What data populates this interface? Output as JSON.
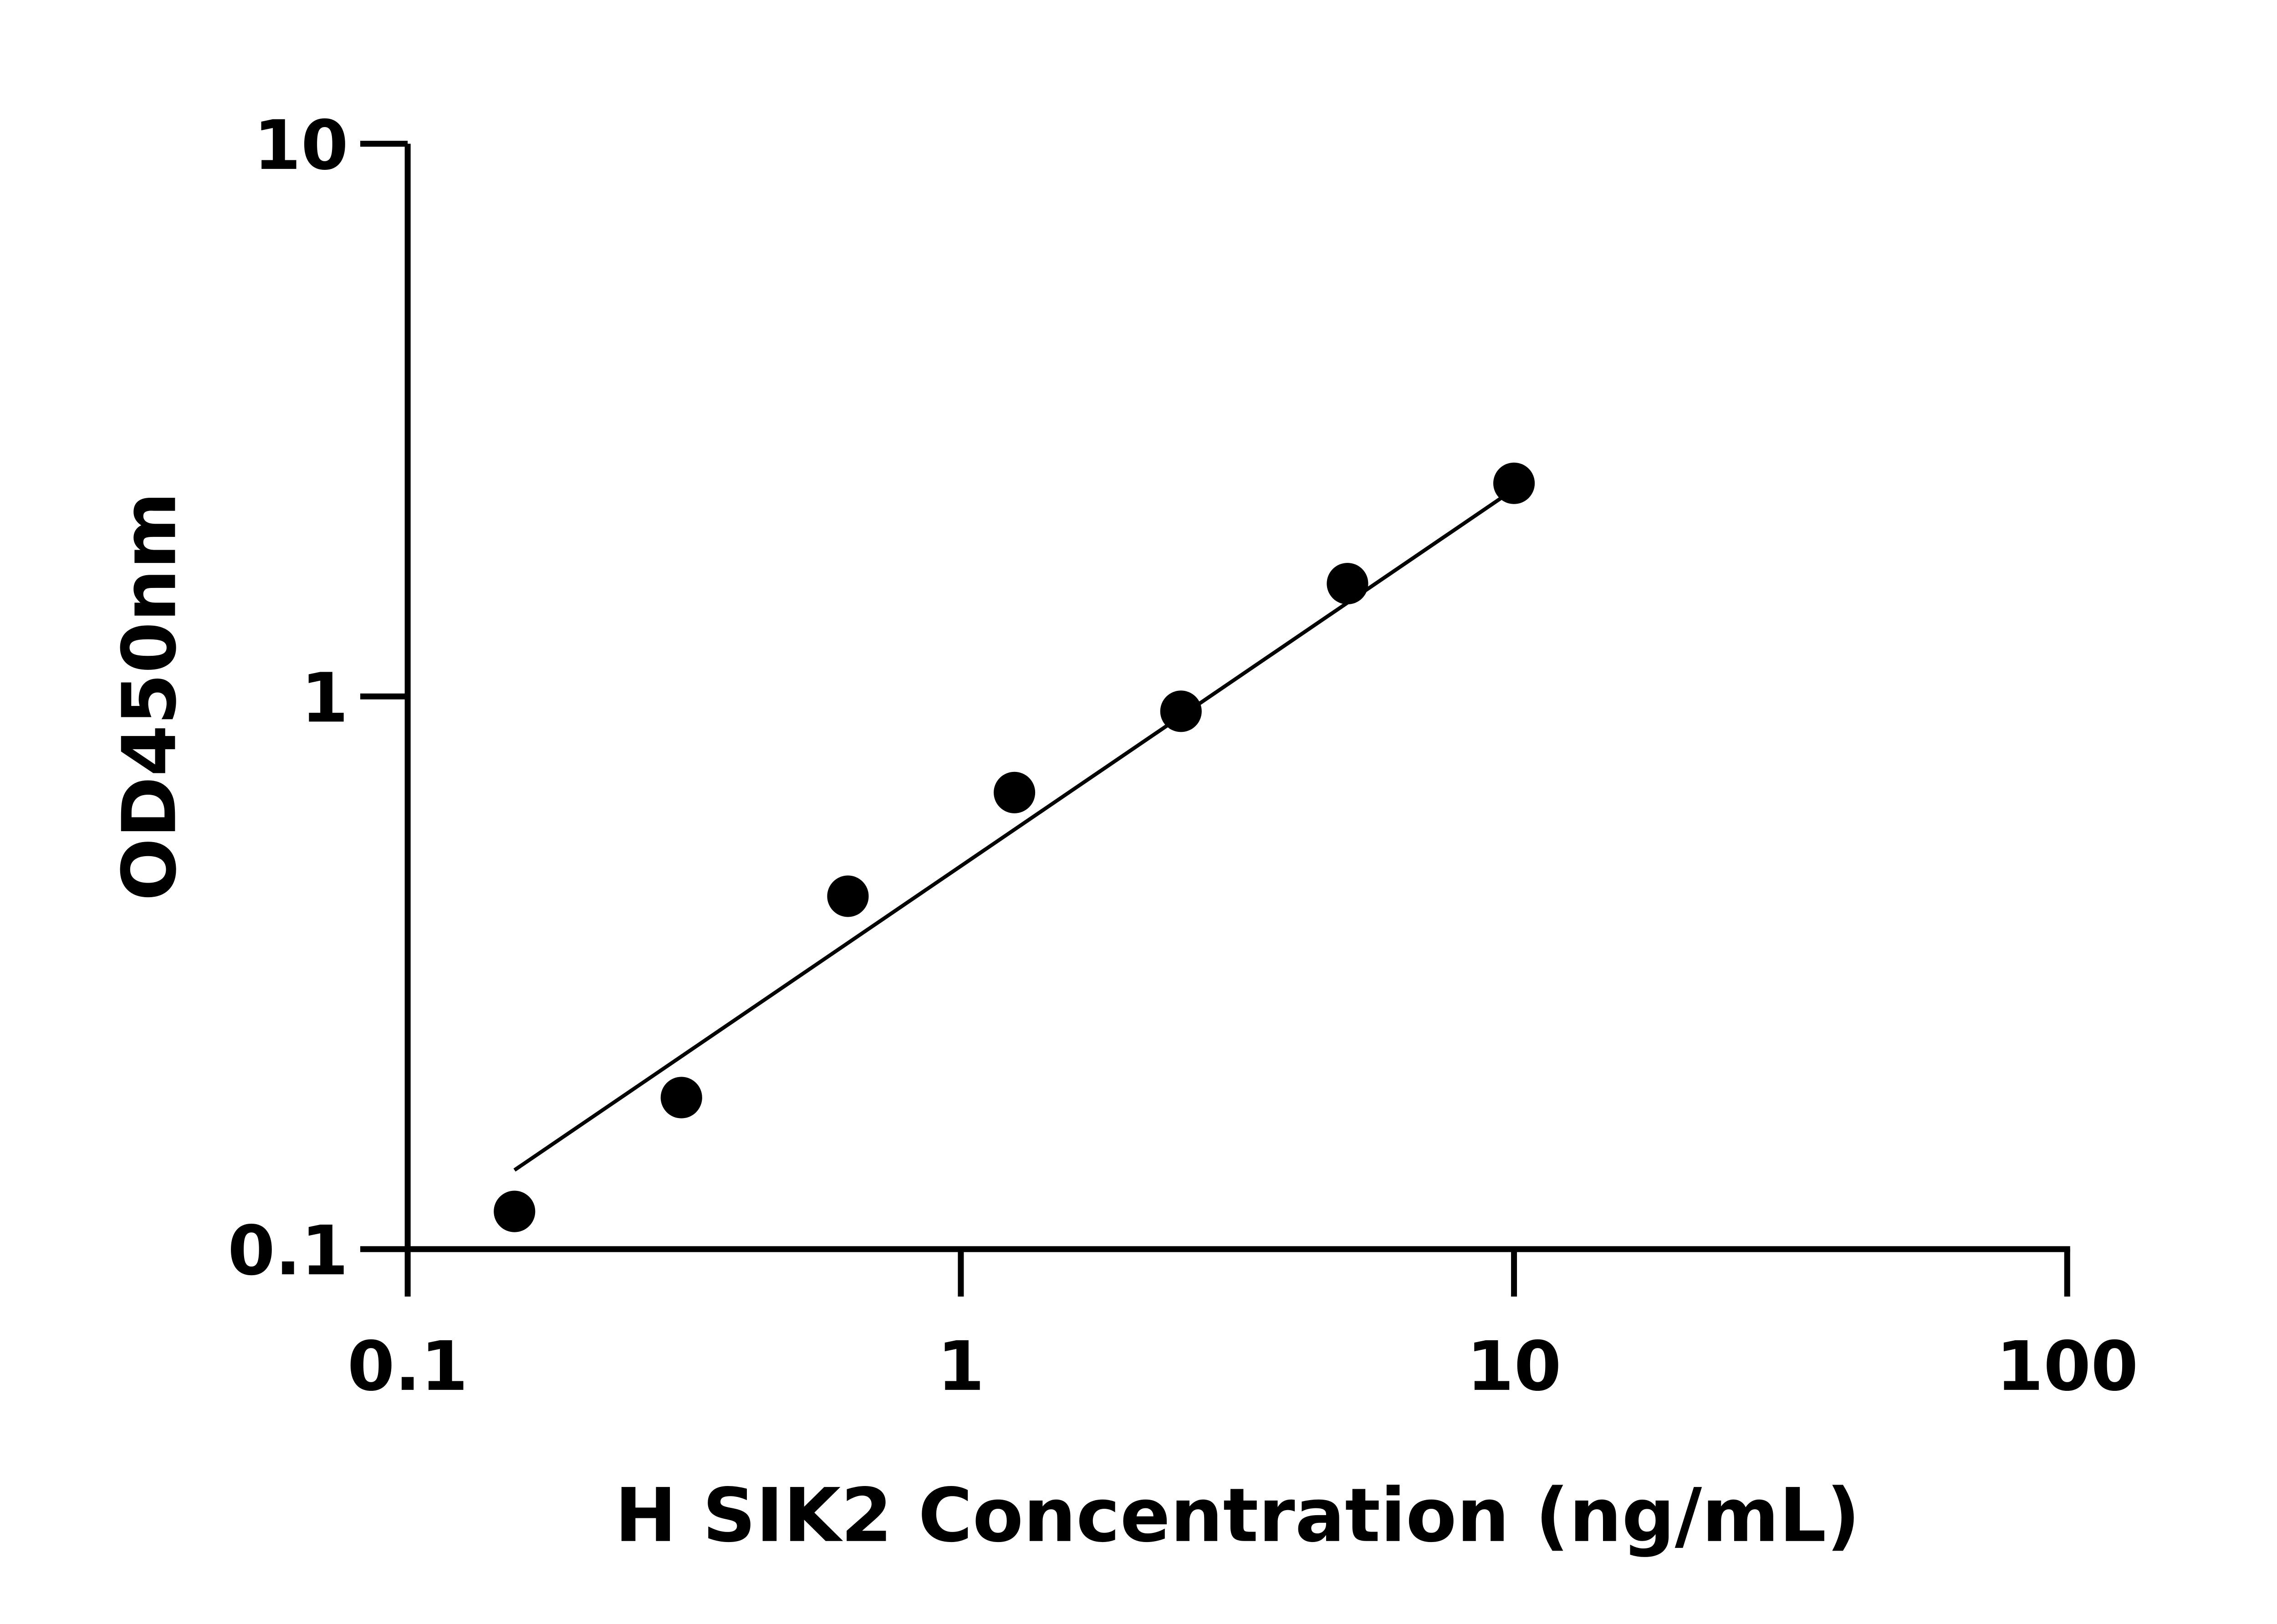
{
  "chart_data": {
    "type": "scatter",
    "title": "",
    "xlabel": "H SIK2 Concentration (ng/mL)",
    "ylabel": "OD450nm",
    "xscale": "log",
    "yscale": "log",
    "xlim": [
      0.1,
      100
    ],
    "ylim": [
      0.1,
      10
    ],
    "xticks": [
      "0.1",
      "1",
      "10",
      "100"
    ],
    "yticks": [
      "0.1",
      "1",
      "10"
    ],
    "grid": false,
    "legend": "none",
    "points": {
      "x": [
        0.156,
        0.3125,
        0.625,
        1.25,
        2.5,
        5,
        10
      ],
      "y": [
        0.117,
        0.188,
        0.435,
        0.67,
        0.94,
        1.6,
        2.43
      ]
    },
    "fit_line": {
      "x": [
        0.156,
        10
      ],
      "y": [
        0.139,
        2.37
      ]
    },
    "colors": {
      "marks": "#000000",
      "background": "#ffffff"
    }
  }
}
